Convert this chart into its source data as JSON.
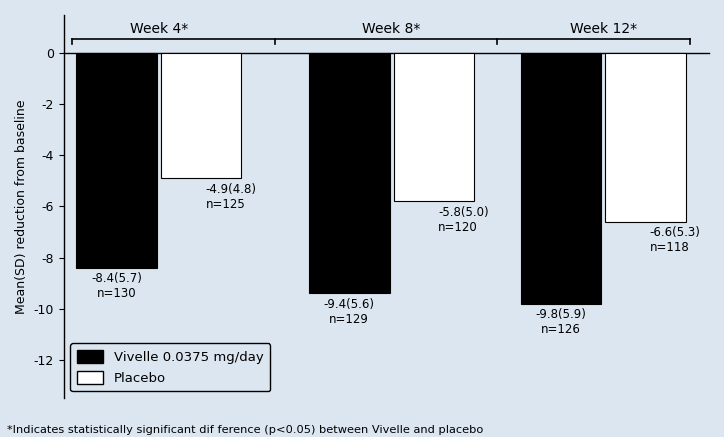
{
  "groups": [
    "Week 4*",
    "Week 8*",
    "Week 12*"
  ],
  "vivelle_values": [
    -8.4,
    -9.4,
    -9.8
  ],
  "placebo_values": [
    -4.9,
    -5.8,
    -6.6
  ],
  "vivelle_labels": [
    "-8.4(5.7)\nn=130",
    "-9.4(5.6)\nn=129",
    "-9.8(5.9)\nn=126"
  ],
  "placebo_labels": [
    "-4.9(4.8)\nn=125",
    "-5.8(5.0)\nn=120",
    "-6.6(5.3)\nn=118"
  ],
  "vivelle_color": "#000000",
  "placebo_color": "#ffffff",
  "bar_edge_color": "#000000",
  "background_color": "#dce6f1",
  "ylabel": "Mean(SD) reduction from baseline",
  "ylim": [
    -13.5,
    1.5
  ],
  "yticks": [
    0,
    -2,
    -4,
    -6,
    -8,
    -10,
    -12
  ],
  "bar_width": 0.38,
  "legend_vivelle": "Vivelle 0.0375 mg/day",
  "legend_placebo": "Placebo",
  "footnote": "*Indicates statistically significant dif ference (p<0.05) between Vivelle and placebo",
  "bar_label_fontsize": 8.5,
  "axis_fontsize": 9,
  "ylabel_fontsize": 9,
  "group_label_fontsize": 10
}
